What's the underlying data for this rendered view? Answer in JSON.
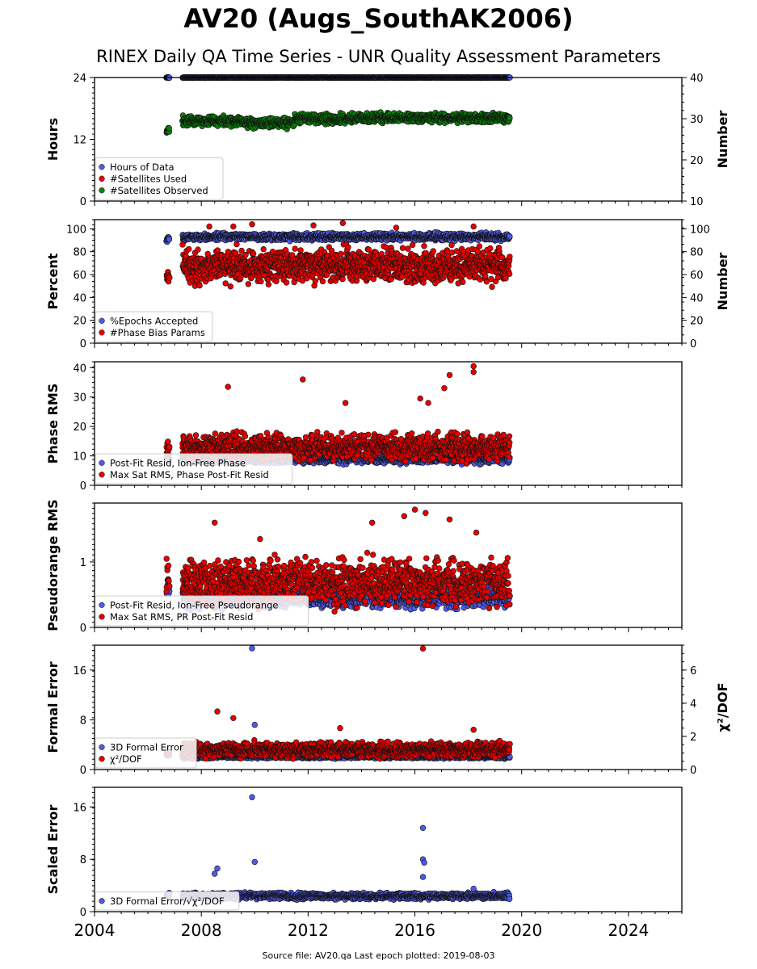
{
  "page": {
    "title": "AV20 (Augs_SouthAK2006)",
    "subtitle": "RINEX Daily QA Time Series - UNR Quality Assessment Parameters",
    "footer": "Source file: AV20.qa Last epoch plotted: 2019-08-03"
  },
  "colors": {
    "blue": "#4f5ae8",
    "red": "#e60000",
    "green": "#0a800a",
    "edge": "#111111"
  },
  "chart_data": [
    {
      "type": "scatter",
      "x_range": [
        2004,
        2026
      ],
      "x_tick_labels": [
        "2004",
        "2008",
        "2012",
        "2016",
        "2020",
        "2024"
      ],
      "ylabel": "Hours",
      "ylim": [
        0,
        24
      ],
      "y_ticks": [
        "0",
        "12",
        "24"
      ],
      "y2label": "Number",
      "y2lim": [
        10,
        40
      ],
      "y2_ticks": [
        "10",
        "20",
        "30",
        "40"
      ],
      "legend_placement": "lower-left",
      "series": [
        {
          "name": "Hours of Data",
          "axis": "left",
          "color": "blue",
          "segments": [
            [
              2006.7,
              2006.8,
              24,
              0.1
            ],
            [
              2007.3,
              2019.55,
              24,
              0.05
            ]
          ]
        },
        {
          "name": "#Satellites Used",
          "axis": "right",
          "color": "red",
          "points": [
            [
              2009.7,
              30
            ]
          ]
        },
        {
          "name": "#Satellites Observed",
          "axis": "right",
          "color": "green",
          "segments": [
            [
              2006.7,
              2006.8,
              27.5,
              1.0
            ],
            [
              2007.3,
              2009.5,
              29.5,
              1.0
            ],
            [
              2009.5,
              2011.5,
              29,
              1.0
            ],
            [
              2011.5,
              2013.5,
              30,
              1.0
            ],
            [
              2013.5,
              2019.55,
              30.2,
              0.9
            ]
          ]
        }
      ]
    },
    {
      "type": "scatter",
      "x_range": [
        2004,
        2026
      ],
      "ylabel": "Percent",
      "ylim": [
        0,
        108
      ],
      "y_ticks": [
        "0",
        "20",
        "40",
        "60",
        "80",
        "100"
      ],
      "y2label": "Number",
      "y2lim": [
        0,
        108
      ],
      "y2_ticks": [
        "0",
        "20",
        "40",
        "60",
        "80",
        "100"
      ],
      "legend_placement": "lower-left",
      "series": [
        {
          "name": "%Epochs Accepted",
          "axis": "left",
          "color": "blue",
          "segments": [
            [
              2006.7,
              2006.8,
              91,
              2
            ],
            [
              2007.3,
              2019.55,
              93,
              2.5
            ]
          ]
        },
        {
          "name": "#Phase Bias Params",
          "axis": "left",
          "color": "red",
          "segments": [
            [
              2006.7,
              2006.8,
              55,
              6
            ],
            [
              2007.3,
              2019.55,
              68,
              12
            ]
          ],
          "points": [
            [
              2008.3,
              102
            ],
            [
              2009.2,
              102
            ],
            [
              2009.9,
              104
            ],
            [
              2012.2,
              103
            ],
            [
              2013.3,
              105
            ],
            [
              2015.3,
              101
            ],
            [
              2018.2,
              102
            ]
          ]
        }
      ]
    },
    {
      "type": "scatter",
      "x_range": [
        2004,
        2026
      ],
      "ylabel": "Phase RMS",
      "ylim": [
        0,
        42
      ],
      "y_ticks": [
        "0",
        "10",
        "20",
        "30",
        "40"
      ],
      "legend_placement": "lower-left",
      "series": [
        {
          "name": "Post-Fit Resid, Ion-Free Phase",
          "axis": "left",
          "color": "blue",
          "segments": [
            [
              2006.7,
              2006.8,
              9,
              1
            ],
            [
              2007.3,
              2019.55,
              9,
              1.2
            ]
          ]
        },
        {
          "name": "Max Sat RMS, Phase Post-Fit Resid",
          "axis": "left",
          "color": "red",
          "segments": [
            [
              2006.7,
              2006.8,
              13,
              2
            ],
            [
              2007.3,
              2019.55,
              13,
              3.5
            ]
          ],
          "points": [
            [
              2009.0,
              33.5
            ],
            [
              2011.8,
              36
            ],
            [
              2016.2,
              29.5
            ],
            [
              2016.5,
              28
            ],
            [
              2017.3,
              37.5
            ],
            [
              2017.1,
              33
            ],
            [
              2018.2,
              40.5
            ],
            [
              2018.2,
              38.5
            ],
            [
              2013.4,
              28
            ]
          ]
        }
      ]
    },
    {
      "type": "scatter",
      "x_range": [
        2004,
        2026
      ],
      "ylabel": "Pseudorange RMS",
      "ylim": [
        0,
        1.9
      ],
      "y_ticks": [
        "0",
        "1"
      ],
      "legend_placement": "lower-left",
      "series": [
        {
          "name": "Post-Fit Resid, Ion-Free Pseudorange",
          "axis": "left",
          "color": "blue",
          "segments": [
            [
              2006.7,
              2006.8,
              0.55,
              0.1
            ],
            [
              2007.3,
              2019.55,
              0.45,
              0.12
            ]
          ]
        },
        {
          "name": "Max Sat RMS, PR Post-Fit Resid",
          "axis": "left",
          "color": "red",
          "segments": [
            [
              2006.7,
              2006.8,
              0.75,
              0.2
            ],
            [
              2007.3,
              2019.55,
              0.7,
              0.28
            ]
          ],
          "points": [
            [
              2006.7,
              1.05
            ],
            [
              2008.5,
              1.6
            ],
            [
              2010.2,
              1.35
            ],
            [
              2014.4,
              1.6
            ],
            [
              2015.6,
              1.7
            ],
            [
              2016.0,
              1.8
            ],
            [
              2016.4,
              1.75
            ],
            [
              2017.3,
              1.65
            ],
            [
              2018.3,
              1.45
            ]
          ]
        }
      ]
    },
    {
      "type": "scatter",
      "x_range": [
        2004,
        2026
      ],
      "ylabel": "Formal Error",
      "ylim": [
        0,
        20
      ],
      "y_ticks": [
        "0",
        "8",
        "16"
      ],
      "y2label": "χ²/DOF",
      "y2lim": [
        0,
        7.5
      ],
      "y2_ticks": [
        "0",
        "2",
        "4",
        "6"
      ],
      "legend_placement": "lower-left",
      "series": [
        {
          "name": "3D Formal Error",
          "axis": "left",
          "color": "blue",
          "segments": [
            [
              2006.7,
              2006.8,
              2.3,
              0.2
            ],
            [
              2007.3,
              2019.55,
              2.1,
              0.25
            ]
          ],
          "points": [
            [
              2009.9,
              19.5
            ],
            [
              2010.0,
              7.2
            ]
          ]
        },
        {
          "name": "χ²/DOF",
          "axis": "right",
          "color": "red",
          "segments": [
            [
              2006.7,
              2006.8,
              1.0,
              0.15
            ],
            [
              2007.3,
              2019.55,
              1.2,
              0.35
            ]
          ],
          "points": [
            [
              2016.3,
              7.3
            ],
            [
              2008.6,
              3.5
            ],
            [
              2009.2,
              3.1
            ],
            [
              2013.2,
              2.5
            ],
            [
              2018.2,
              2.4
            ]
          ]
        }
      ]
    },
    {
      "type": "scatter",
      "x_range": [
        2004,
        2026
      ],
      "ylabel": "Scaled Error",
      "ylim": [
        0,
        19
      ],
      "y_ticks": [
        "0",
        "8",
        "16"
      ],
      "legend_placement": "lower-left",
      "series": [
        {
          "name": "3D Formal Error/√χ²/DOF",
          "axis": "left",
          "color": "blue",
          "segments": [
            [
              2006.7,
              2006.8,
              2.5,
              0.3
            ],
            [
              2007.3,
              2019.55,
              2.4,
              0.4
            ]
          ],
          "points": [
            [
              2009.9,
              17.5
            ],
            [
              2010.0,
              7.6
            ],
            [
              2008.6,
              6.6
            ],
            [
              2008.5,
              5.8
            ],
            [
              2016.3,
              12.8
            ],
            [
              2016.3,
              8
            ],
            [
              2016.35,
              7.5
            ],
            [
              2016.3,
              5.3
            ],
            [
              2018.2,
              3.5
            ]
          ]
        }
      ]
    }
  ]
}
